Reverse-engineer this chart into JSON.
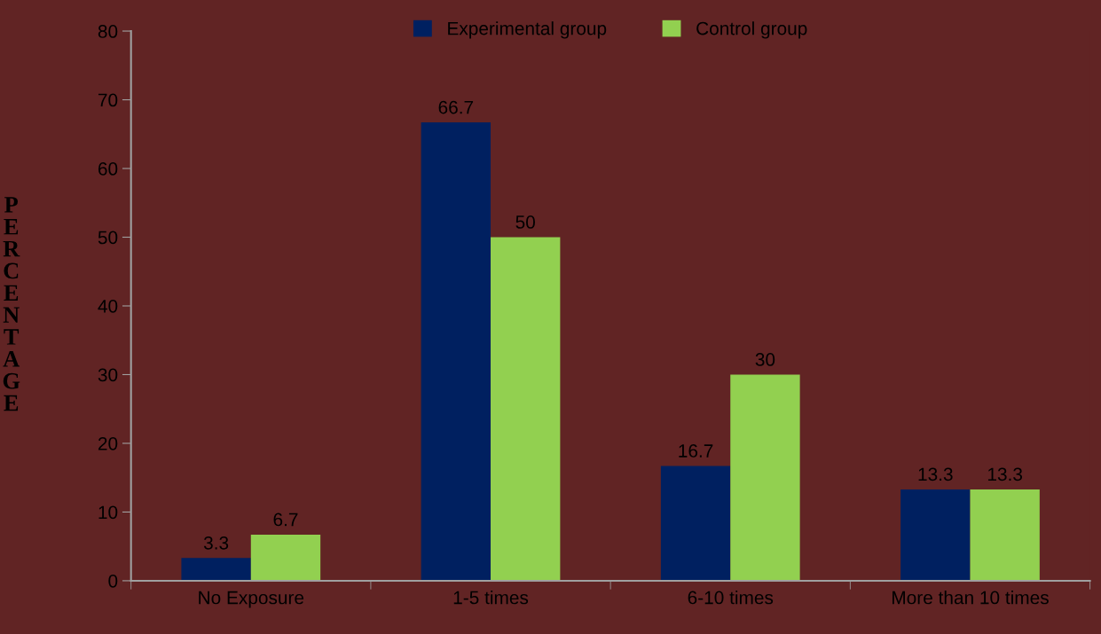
{
  "chart_data": {
    "type": "bar",
    "ylabel": "PERCENTAGE",
    "categories": [
      "No Exposure",
      "1-5 times",
      "6-10 times",
      "More than 10 times"
    ],
    "series": [
      {
        "name": "Experimental group",
        "color": "#002060",
        "values": [
          3.3,
          66.7,
          16.7,
          13.3
        ]
      },
      {
        "name": "Control group",
        "color": "#92d050",
        "values": [
          6.7,
          50,
          30,
          13.3
        ]
      }
    ],
    "ylim": [
      0,
      80
    ],
    "yticks": [
      0,
      10,
      20,
      30,
      40,
      50,
      60,
      70,
      80
    ],
    "data_labels": true,
    "grid": false,
    "legend": "top"
  }
}
